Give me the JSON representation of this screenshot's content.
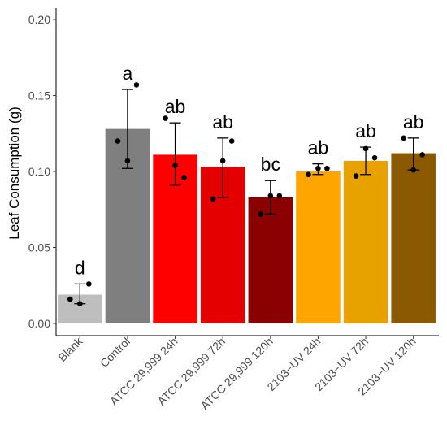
{
  "chart_data": {
    "type": "bar",
    "title": "",
    "xlabel": "",
    "ylabel": "Leaf Consumption (g)",
    "ylim": [
      0,
      0.2
    ],
    "yticks": [
      0.0,
      0.05,
      0.1,
      0.15,
      0.2
    ],
    "ytick_labels": [
      "0.00",
      "0.05",
      "0.10",
      "0.15",
      "0.20"
    ],
    "grid": false,
    "legend": "none",
    "categories": [
      "Blank",
      "Control",
      "ATCC 29,999 24h",
      "ATCC 29,999 72h",
      "ATCC 29,999 120h",
      "2103−UV 24h",
      "2103−UV 72h",
      "2103−UV 120h"
    ],
    "values": [
      0.019,
      0.128,
      0.111,
      0.103,
      0.083,
      0.1,
      0.107,
      0.112
    ],
    "error_low": [
      0.013,
      0.102,
      0.091,
      0.083,
      0.072,
      0.098,
      0.098,
      0.101
    ],
    "error_high": [
      0.026,
      0.154,
      0.132,
      0.122,
      0.094,
      0.105,
      0.116,
      0.122
    ],
    "points": [
      [
        0.016,
        0.013,
        0.026
      ],
      [
        0.12,
        0.107,
        0.157
      ],
      [
        0.135,
        0.104,
        0.096
      ],
      [
        0.082,
        0.107,
        0.12
      ],
      [
        0.072,
        0.084,
        0.084
      ],
      [
        0.098,
        0.102,
        0.102
      ],
      [
        0.097,
        0.115,
        0.109
      ],
      [
        0.122,
        0.101,
        0.111
      ]
    ],
    "letters": [
      "d",
      "a",
      "ab",
      "ab",
      "bc",
      "ab",
      "ab",
      "ab"
    ],
    "colors": [
      "#bebebe",
      "#7f7f7f",
      "#ff0000",
      "#e50000",
      "#8b0000",
      "#ffa500",
      "#e8a200",
      "#8b5a00"
    ]
  }
}
